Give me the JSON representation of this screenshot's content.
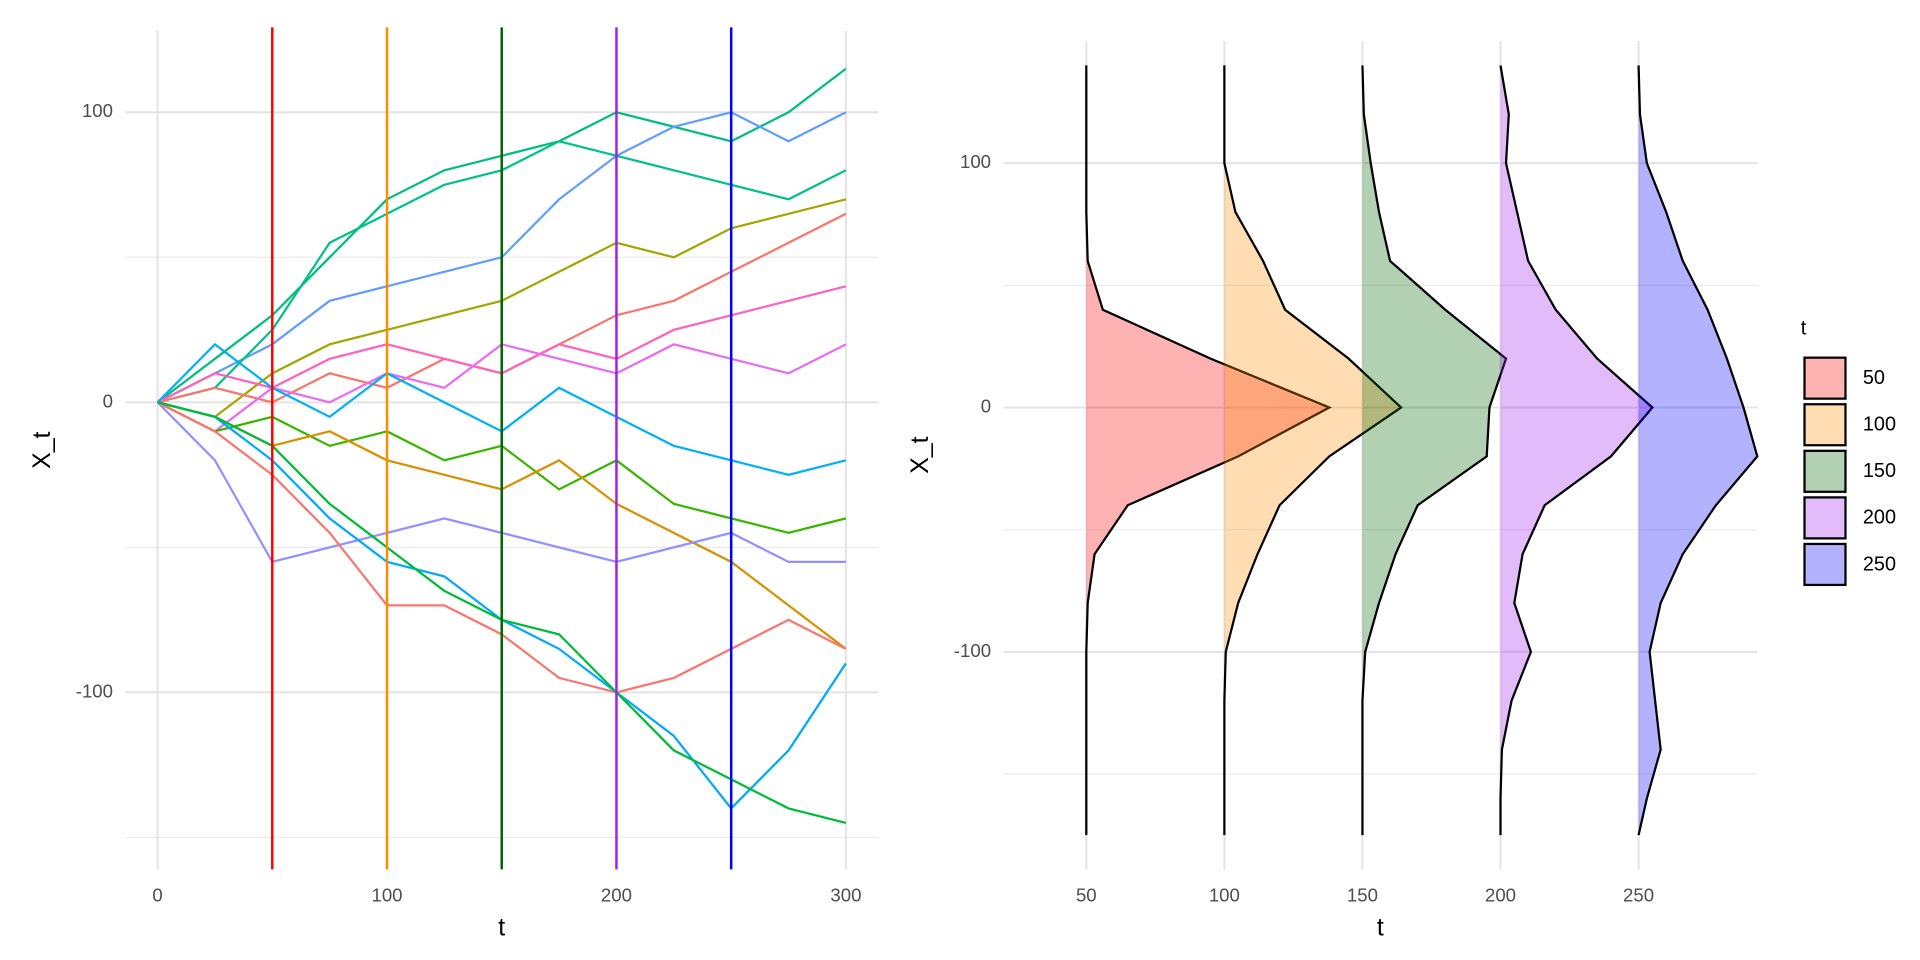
{
  "chart_data": [
    {
      "type": "line",
      "x_label": "t",
      "y_label": "X_t",
      "x": [
        0,
        25,
        50,
        75,
        100,
        125,
        150,
        175,
        200,
        225,
        250,
        275,
        300
      ],
      "xlim": [
        -14,
        314
      ],
      "xticks": [
        0,
        100,
        200,
        300
      ],
      "ylim": [
        -161,
        128
      ],
      "yticks": [
        -100,
        0,
        100
      ],
      "y_minor_ticks": [
        -150,
        -50,
        50
      ],
      "grid": true,
      "series": [
        {
          "color": "#00BF7D",
          "values": [
            0,
            15,
            30,
            50,
            70,
            80,
            85,
            90,
            100,
            95,
            90,
            100,
            115
          ]
        },
        {
          "color": "#619CFF",
          "values": [
            0,
            10,
            20,
            35,
            40,
            45,
            50,
            70,
            85,
            95,
            100,
            90,
            100
          ]
        },
        {
          "color": "#00C08B",
          "values": [
            0,
            5,
            25,
            55,
            65,
            75,
            80,
            90,
            85,
            80,
            75,
            70,
            80
          ]
        },
        {
          "color": "#A3A500",
          "values": [
            0,
            -5,
            10,
            20,
            25,
            30,
            35,
            45,
            55,
            50,
            60,
            65,
            70
          ]
        },
        {
          "color": "#F8766D",
          "values": [
            0,
            5,
            0,
            10,
            5,
            15,
            10,
            20,
            30,
            35,
            45,
            55,
            65
          ]
        },
        {
          "color": "#FF62BC",
          "values": [
            0,
            10,
            5,
            15,
            20,
            15,
            10,
            20,
            15,
            25,
            30,
            35,
            40
          ]
        },
        {
          "color": "#E76BF3",
          "values": [
            0,
            -10,
            5,
            0,
            10,
            5,
            20,
            15,
            10,
            20,
            15,
            10,
            20
          ]
        },
        {
          "color": "#00B0F6",
          "values": [
            0,
            20,
            5,
            -5,
            10,
            0,
            -10,
            5,
            -5,
            -15,
            -20,
            -25,
            -20
          ]
        },
        {
          "color": "#39B600",
          "values": [
            0,
            -10,
            -5,
            -15,
            -10,
            -20,
            -15,
            -30,
            -20,
            -35,
            -40,
            -45,
            -40
          ]
        },
        {
          "color": "#D89000",
          "values": [
            0,
            -5,
            -15,
            -10,
            -20,
            -25,
            -30,
            -20,
            -35,
            -45,
            -55,
            -70,
            -85
          ]
        },
        {
          "color": "#9590FF",
          "values": [
            0,
            -20,
            -55,
            -50,
            -45,
            -40,
            -45,
            -50,
            -55,
            -50,
            -45,
            -55,
            -55
          ]
        },
        {
          "color": "#F8766D",
          "values": [
            0,
            -10,
            -25,
            -45,
            -70,
            -70,
            -80,
            -95,
            -100,
            -95,
            -85,
            -75,
            -85
          ]
        },
        {
          "color": "#00A9FF",
          "values": [
            0,
            -5,
            -20,
            -40,
            -55,
            -60,
            -75,
            -85,
            -100,
            -115,
            -140,
            -120,
            -90
          ]
        },
        {
          "color": "#00BA38",
          "values": [
            0,
            -5,
            -15,
            -35,
            -50,
            -65,
            -75,
            -80,
            -100,
            -120,
            -130,
            -140,
            -145
          ]
        }
      ],
      "vlines": [
        {
          "value": 50,
          "color": "#ff0000"
        },
        {
          "value": 100,
          "color": "#ff8c00"
        },
        {
          "value": 150,
          "color": "#006400"
        },
        {
          "value": 200,
          "color": "#a020f0"
        },
        {
          "value": 250,
          "color": "#0000ff"
        }
      ]
    },
    {
      "type": "ridge",
      "x_label": "t",
      "y_label": "X_t",
      "legend_title": "t",
      "y": [
        140,
        120,
        100,
        80,
        60,
        40,
        20,
        0,
        -20,
        -40,
        -60,
        -80,
        -100,
        -120,
        -140,
        -160,
        -175
      ],
      "xlim": [
        20,
        293
      ],
      "xticks": [
        50,
        100,
        150,
        200,
        250
      ],
      "ylim": [
        -189,
        150
      ],
      "yticks": [
        -100,
        0,
        100
      ],
      "y_minor_ticks": [
        -150,
        -50,
        50
      ],
      "grid": true,
      "series": [
        {
          "name": "50",
          "color": "#ff0000",
          "baseline": 50,
          "values": [
            0,
            0,
            0,
            0,
            0.5,
            6,
            45,
            88,
            55,
            15,
            3,
            0.5,
            0,
            0,
            0,
            0,
            0
          ]
        },
        {
          "name": "100",
          "color": "#ff8c00",
          "baseline": 100,
          "values": [
            0,
            0,
            0,
            4,
            14,
            22,
            45,
            64,
            38,
            20,
            12,
            5,
            0.5,
            0,
            0,
            0,
            0
          ]
        },
        {
          "name": "150",
          "color": "#006400",
          "baseline": 150,
          "values": [
            0,
            0.5,
            3,
            6,
            10,
            30,
            52,
            46,
            45,
            20,
            12,
            6,
            1,
            0,
            0,
            0,
            0
          ]
        },
        {
          "name": "200",
          "color": "#a020f0",
          "baseline": 200,
          "values": [
            0,
            3,
            2,
            6,
            10,
            20,
            35,
            55,
            40,
            16,
            8,
            5,
            11,
            4,
            0.5,
            0,
            0
          ]
        },
        {
          "name": "250",
          "color": "#0000ff",
          "baseline": 250,
          "values": [
            0,
            0.5,
            3,
            10,
            16,
            25,
            32,
            38,
            43,
            28,
            16,
            8,
            4,
            6,
            8,
            3,
            0
          ]
        }
      ]
    }
  ]
}
